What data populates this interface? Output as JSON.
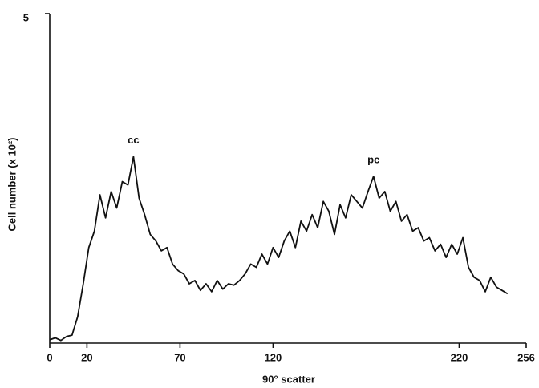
{
  "chart_data": {
    "type": "line",
    "xlabel": "90° scatter",
    "ylabel": "Cell number (x 10²)",
    "annotations": [
      {
        "text": "cc",
        "x": 45,
        "y": 2.83
      },
      {
        "text": "pc",
        "x": 174,
        "y": 2.53
      }
    ],
    "xlim": [
      0,
      256
    ],
    "xticks": [
      0,
      20,
      70,
      120,
      220,
      256
    ],
    "ylim": [
      0,
      5
    ],
    "yticks": [
      5
    ],
    "color": "#111111",
    "x": [
      0,
      3,
      6,
      9,
      12,
      15,
      18,
      21,
      24,
      27,
      30,
      33,
      36,
      39,
      42,
      45,
      48,
      51,
      54,
      57,
      60,
      63,
      66,
      69,
      72,
      75,
      78,
      81,
      84,
      87,
      90,
      93,
      96,
      99,
      102,
      105,
      108,
      111,
      114,
      117,
      120,
      123,
      126,
      129,
      132,
      135,
      138,
      141,
      144,
      147,
      150,
      153,
      156,
      159,
      162,
      165,
      168,
      171,
      174,
      177,
      180,
      183,
      186,
      189,
      192,
      195,
      198,
      201,
      204,
      207,
      210,
      213,
      216,
      219,
      222,
      225,
      228,
      231,
      234,
      237,
      240,
      243,
      246
    ],
    "values": [
      0.05,
      0.08,
      0.04,
      0.1,
      0.12,
      0.4,
      0.9,
      1.45,
      1.7,
      2.25,
      1.9,
      2.3,
      2.05,
      2.45,
      2.4,
      2.83,
      2.2,
      1.95,
      1.65,
      1.55,
      1.4,
      1.45,
      1.2,
      1.1,
      1.05,
      0.9,
      0.95,
      0.8,
      0.9,
      0.78,
      0.95,
      0.82,
      0.9,
      0.88,
      0.95,
      1.05,
      1.2,
      1.15,
      1.35,
      1.2,
      1.45,
      1.3,
      1.55,
      1.7,
      1.45,
      1.85,
      1.7,
      1.95,
      1.75,
      2.15,
      2.0,
      1.65,
      2.1,
      1.9,
      2.25,
      2.15,
      2.05,
      2.3,
      2.53,
      2.2,
      2.3,
      2.0,
      2.15,
      1.85,
      1.95,
      1.7,
      1.75,
      1.55,
      1.6,
      1.4,
      1.5,
      1.3,
      1.5,
      1.35,
      1.6,
      1.15,
      1.0,
      0.95,
      0.78,
      1.0,
      0.85,
      0.8,
      0.75
    ]
  }
}
